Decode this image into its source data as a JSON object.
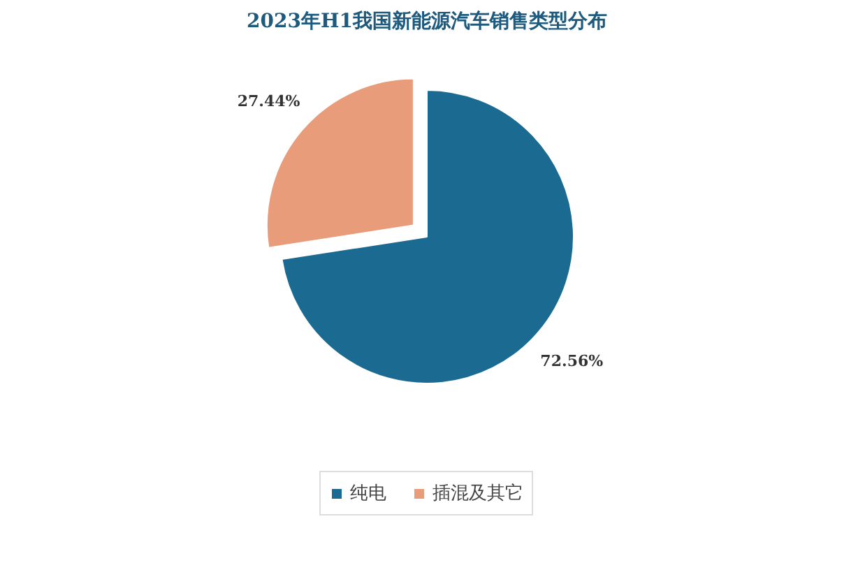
{
  "chart_data": {
    "type": "pie",
    "title": "2023年H1我国新能源汽车销售类型分布",
    "categories": [
      "纯电",
      "插混及其它"
    ],
    "values": [
      72.56,
      27.44
    ],
    "colors": [
      "#1a6a91",
      "#e89c7a"
    ],
    "value_labels": [
      "72.56%",
      "27.44%"
    ],
    "legend": "bottom"
  }
}
